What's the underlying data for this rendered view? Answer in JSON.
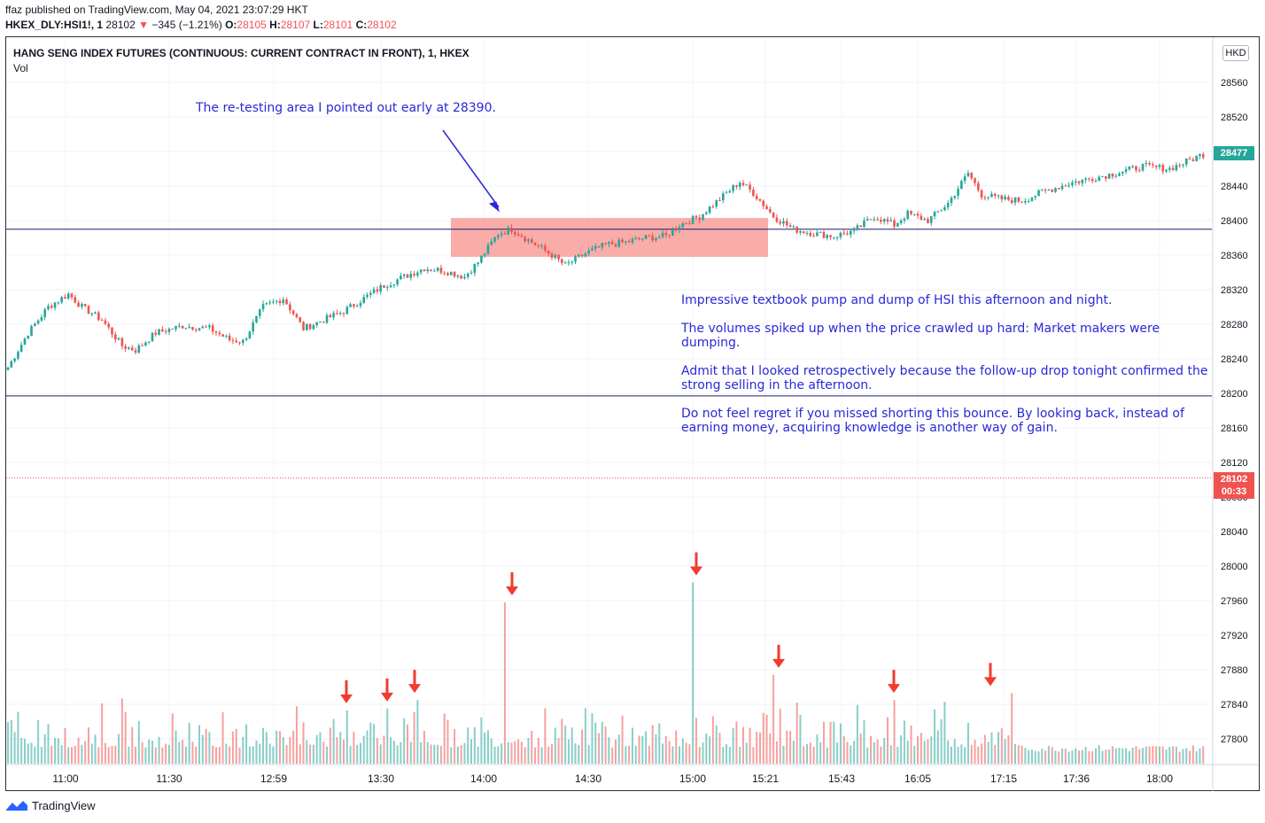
{
  "header": {
    "publisher_line": "ffaz published on TradingView.com, May 04, 2021 23:07:29 HKT",
    "symbol": "HKEX_DLY:HSI1!, 1",
    "last": "28102",
    "change": "−345 (−1.21%)",
    "o_label": "O:",
    "o_value": "28105",
    "h_label": "H:",
    "h_value": "28107",
    "l_label": "L:",
    "l_value": "28101",
    "c_label": "C:",
    "c_value": "28102"
  },
  "pane": {
    "title": "HANG SENG INDEX FUTURES (CONTINUOUS: CURRENT CONTRACT IN FRONT), 1, HKEX",
    "volume_label": "Vol",
    "currency": "HKD"
  },
  "annotations": {
    "retest_note": "The re-testing area I pointed out early at 28390.",
    "paragraphs": [
      "Impressive textbook pump and dump of HSI this afternoon and night.",
      "The volumes spiked up when the price crawled up hard: Market makers were dumping.",
      "Admit that I looked retrospectively because the follow-up drop tonight confirmed the strong selling in the afternoon.",
      "Do not feel regret if you missed shorting this bounce. By looking back, instead of earning money, acquiring knowledge is another way of gain."
    ]
  },
  "tags": {
    "current_value": "28477",
    "last_value": "28102",
    "countdown": "00:33"
  },
  "footer": {
    "brand": "TradingView"
  },
  "colors": {
    "up": "#26a69a",
    "down": "#ef5350",
    "annotation": "#2929d6",
    "zone": "#f8a39f",
    "arrow": "#f23b2f",
    "grid": "#f0f3fa"
  },
  "chart_data": {
    "type": "candlestick",
    "title": "HANG SENG INDEX FUTURES (CONTINUOUS: CURRENT CONTRACT IN FRONT), 1, HKEX",
    "y_ticks": [
      28560,
      28520,
      28480,
      28440,
      28400,
      28360,
      28320,
      28280,
      28240,
      28200,
      28160,
      28120,
      28080,
      28040,
      28000,
      27960,
      27920,
      27880,
      27840,
      27800
    ],
    "x_ticks": [
      "11:00",
      "11:30",
      "12:59",
      "13:30",
      "14:00",
      "14:30",
      "15:00",
      "15:21",
      "15:43",
      "16:05",
      "17:15",
      "17:36",
      "18:00"
    ],
    "ylim": [
      27780,
      28585
    ],
    "horizontal_lines": [
      28390,
      28197
    ],
    "retest_zone": {
      "low": 28358,
      "high": 28403
    },
    "price_anchors": [
      [
        0,
        28230
      ],
      [
        6,
        28270
      ],
      [
        12,
        28300
      ],
      [
        18,
        28315
      ],
      [
        22,
        28300
      ],
      [
        28,
        28285
      ],
      [
        34,
        28255
      ],
      [
        38,
        28250
      ],
      [
        44,
        28270
      ],
      [
        52,
        28278
      ],
      [
        60,
        28275
      ],
      [
        66,
        28262
      ],
      [
        70,
        28260
      ],
      [
        76,
        28300
      ],
      [
        82,
        28310
      ],
      [
        88,
        28275
      ],
      [
        94,
        28285
      ],
      [
        100,
        28295
      ],
      [
        106,
        28310
      ],
      [
        112,
        28325
      ],
      [
        118,
        28335
      ],
      [
        124,
        28345
      ],
      [
        130,
        28342
      ],
      [
        136,
        28335
      ],
      [
        140,
        28352
      ],
      [
        146,
        28385
      ],
      [
        150,
        28390
      ],
      [
        156,
        28375
      ],
      [
        162,
        28360
      ],
      [
        166,
        28348
      ],
      [
        172,
        28362
      ],
      [
        178,
        28372
      ],
      [
        184,
        28375
      ],
      [
        190,
        28380
      ],
      [
        196,
        28382
      ],
      [
        200,
        28395
      ],
      [
        206,
        28405
      ],
      [
        212,
        28425
      ],
      [
        218,
        28445
      ],
      [
        222,
        28432
      ],
      [
        228,
        28405
      ],
      [
        234,
        28390
      ],
      [
        240,
        28385
      ],
      [
        246,
        28382
      ],
      [
        252,
        28388
      ],
      [
        258,
        28405
      ],
      [
        264,
        28395
      ],
      [
        268,
        28408
      ],
      [
        274,
        28400
      ],
      [
        280,
        28420
      ],
      [
        286,
        28455
      ],
      [
        290,
        28430
      ],
      [
        296,
        28425
      ],
      [
        302,
        28423
      ],
      [
        308,
        28433
      ],
      [
        316,
        28443
      ],
      [
        324,
        28450
      ],
      [
        330,
        28455
      ],
      [
        338,
        28463
      ],
      [
        346,
        28460
      ],
      [
        352,
        28470
      ],
      [
        356,
        28477
      ]
    ],
    "volume_spikes": [
      {
        "time": "13:15",
        "volume": 27833
      },
      {
        "time": "13:32",
        "volume": 27835
      },
      {
        "time": "13:44",
        "volume": 27845
      },
      {
        "time": "14:07",
        "volume": 27958
      },
      {
        "time": "15:00",
        "volume": 27981
      },
      {
        "time": "15:25",
        "volume": 27874
      },
      {
        "time": "16:00",
        "volume": 27845
      },
      {
        "time": "17:10",
        "volume": 27853
      }
    ]
  }
}
